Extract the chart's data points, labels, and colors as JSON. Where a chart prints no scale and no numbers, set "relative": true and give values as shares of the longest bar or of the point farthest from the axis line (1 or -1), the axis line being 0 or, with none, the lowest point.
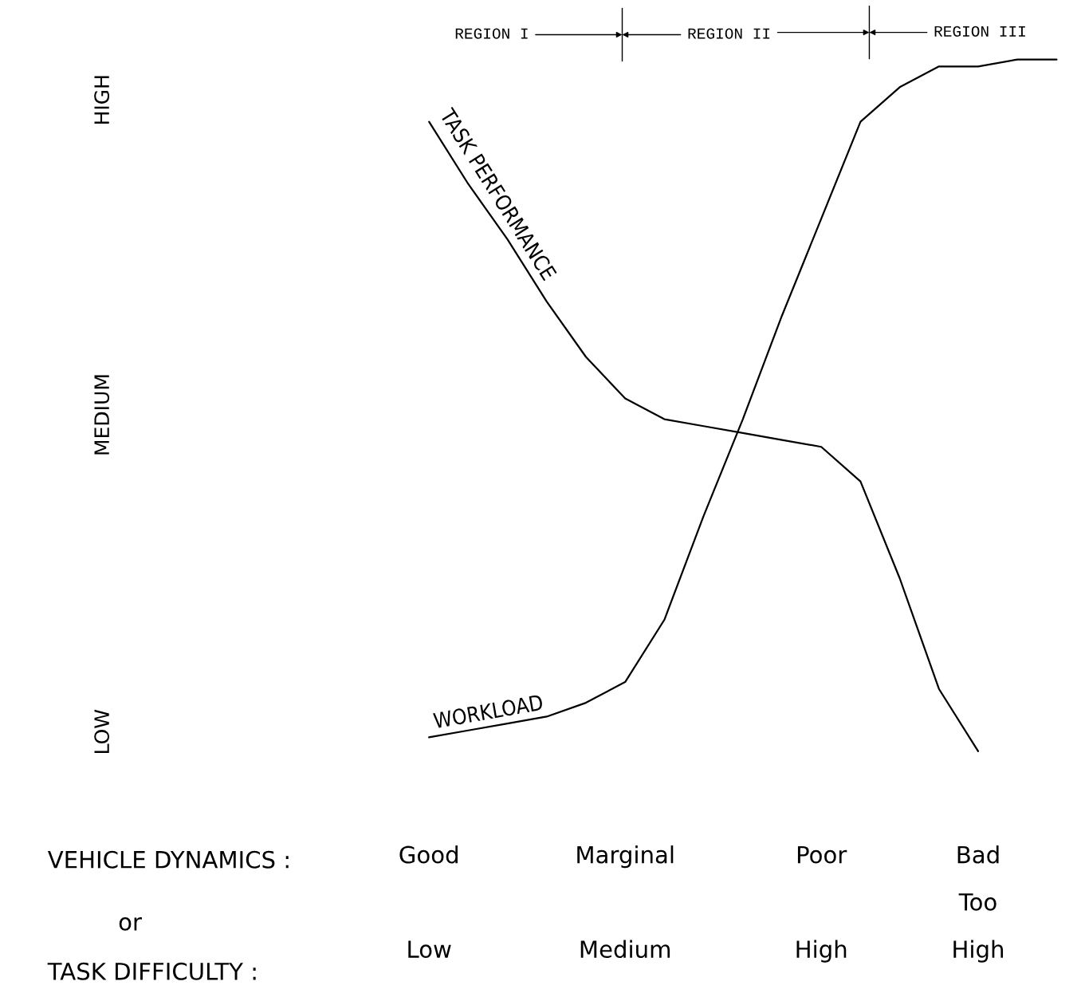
{
  "chart_data": {
    "type": "line",
    "relative": true,
    "categories": [
      null,
      null,
      null,
      null,
      null,
      null,
      null,
      null,
      "Good\n\nLow",
      null,
      null,
      null,
      null,
      "Marginal\n\nMedium",
      null,
      null,
      null,
      null,
      "Poor\n\nHigh",
      null,
      null,
      null,
      "Bad\nToo\nHigh",
      null,
      null
    ],
    "series": [
      {
        "name": "TASK PERFORMANCE",
        "color": "#000000",
        "values": [
          null,
          null,
          null,
          null,
          null,
          null,
          null,
          null,
          0.91,
          0.82,
          0.74,
          0.65,
          0.57,
          0.51,
          0.48,
          0.47,
          0.46,
          0.45,
          0.44,
          0.39,
          0.25,
          0.09,
          0,
          null,
          null
        ]
      },
      {
        "name": "WORKLOAD",
        "color": "#000000",
        "values": [
          null,
          null,
          null,
          null,
          null,
          null,
          null,
          null,
          0.02,
          0.03,
          0.04,
          0.05,
          0.07,
          0.1,
          0.19,
          0.34,
          0.48,
          0.63,
          0.77,
          0.91,
          0.96,
          0.99,
          0.99,
          1.0,
          1.0
        ]
      }
    ],
    "xlabel": "VEHICLE DYNAMICS :",
    "annotations": [
      "REGION I",
      "REGION II",
      "REGION III",
      "LOW",
      "MEDIUM",
      "HIGH",
      "or",
      "TASK DIFFICULTY :"
    ],
    "line_style": "solid",
    "marker": "none",
    "grid": false,
    "legend": false
  }
}
